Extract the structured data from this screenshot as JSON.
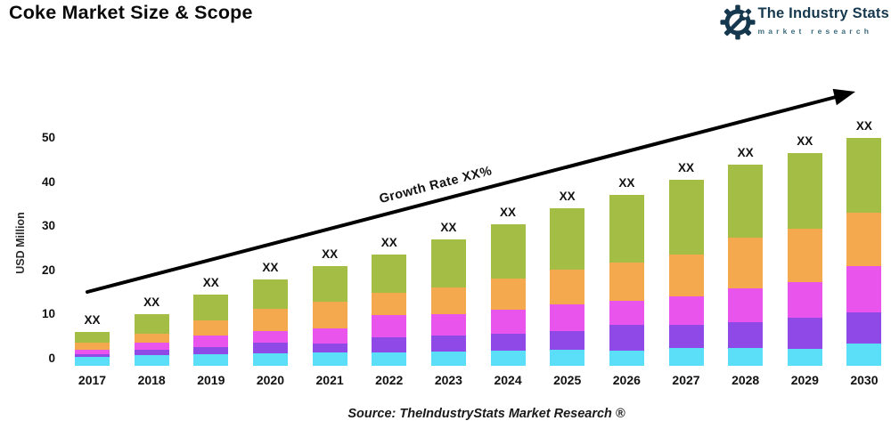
{
  "header": {
    "title": "Coke Market Size & Scope",
    "logo": {
      "name": "The Industry Stats",
      "tagline": "market research",
      "accent_color": "#16384e",
      "tagline_color": "#3b6b7d"
    }
  },
  "chart_data": {
    "type": "bar",
    "stacked": true,
    "title": "",
    "xlabel": "",
    "ylabel": "USD Million",
    "ylim": [
      0,
      50
    ],
    "yticks": [
      0,
      10,
      20,
      30,
      40,
      50
    ],
    "grid": false,
    "legend": "none",
    "categories": [
      "2017",
      "2018",
      "2019",
      "2020",
      "2021",
      "2022",
      "2023",
      "2024",
      "2025",
      "2026",
      "2027",
      "2028",
      "2029",
      "2030"
    ],
    "series": [
      {
        "name": "cyan",
        "color": "#5bdef7",
        "values": [
          0.4,
          0.8,
          1.0,
          1.2,
          1.5,
          1.4,
          1.6,
          1.8,
          2.0,
          1.8,
          2.4,
          2.4,
          2.2,
          3.5
        ]
      },
      {
        "name": "purple",
        "color": "#8e49e6",
        "values": [
          0.6,
          1.2,
          1.6,
          2.4,
          2.0,
          3.5,
          3.6,
          3.8,
          4.2,
          5.8,
          5.2,
          5.8,
          7.1,
          7.0
        ]
      },
      {
        "name": "magenta",
        "color": "#e955ec",
        "values": [
          1.1,
          1.7,
          2.6,
          2.6,
          3.4,
          5.0,
          4.8,
          5.5,
          6.0,
          5.6,
          6.5,
          7.7,
          8.0,
          10.5
        ]
      },
      {
        "name": "orange",
        "color": "#f4a94e",
        "values": [
          1.6,
          2.0,
          3.5,
          5.0,
          6.0,
          5.0,
          6.2,
          7.0,
          8.0,
          8.6,
          9.5,
          11.5,
          12.1,
          12.0
        ]
      },
      {
        "name": "green",
        "color": "#a4bd44",
        "values": [
          2.3,
          4.3,
          5.8,
          6.8,
          8.1,
          8.6,
          10.8,
          12.4,
          13.8,
          15.2,
          16.9,
          16.6,
          17.1,
          17.0
        ]
      }
    ],
    "totals": [
      6,
      10,
      14.5,
      18,
      21,
      23.5,
      27,
      30.5,
      34,
      37,
      40.5,
      44,
      46.5,
      50
    ],
    "bar_value_label": "XX",
    "trend_arrow": {
      "label": "Growth Rate XX%"
    }
  },
  "footer": {
    "source": "Source: TheIndustryStats Market Research ®"
  }
}
